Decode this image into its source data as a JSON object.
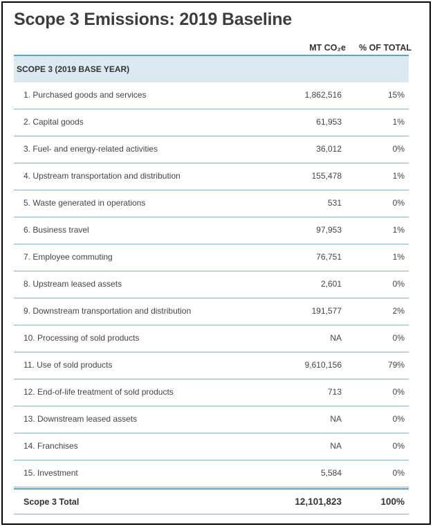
{
  "title": "Scope 3 Emissions: 2019 Baseline",
  "columns": {
    "mt": "MT CO₂e",
    "pct": "% OF TOTAL"
  },
  "section_label": "SCOPE 3 (2019 BASE YEAR)",
  "rows": [
    {
      "label": "1. Purchased goods and services",
      "mt": "1,862,516",
      "pct": "15%"
    },
    {
      "label": "2. Capital goods",
      "mt": "61,953",
      "pct": "1%"
    },
    {
      "label": "3. Fuel- and energy-related activities",
      "mt": "36,012",
      "pct": "0%"
    },
    {
      "label": "4. Upstream transportation and distribution",
      "mt": "155,478",
      "pct": "1%"
    },
    {
      "label": "5. Waste generated in operations",
      "mt": "531",
      "pct": "0%"
    },
    {
      "label": "6. Business travel",
      "mt": "97,953",
      "pct": "1%"
    },
    {
      "label": "7. Employee commuting",
      "mt": "76,751",
      "pct": "1%"
    },
    {
      "label": "8. Upstream leased assets",
      "mt": "2,601",
      "pct": "0%"
    },
    {
      "label": "9. Downstream transportation and distribution",
      "mt": "191,577",
      "pct": "2%"
    },
    {
      "label": "10. Processing of sold products",
      "mt": "NA",
      "pct": "0%"
    },
    {
      "label": "11. Use of sold products",
      "mt": "9,610,156",
      "pct": "79%"
    },
    {
      "label": "12. End-of-life treatment of sold products",
      "mt": "713",
      "pct": "0%"
    },
    {
      "label": "13. Downstream leased assets",
      "mt": "NA",
      "pct": "0%"
    },
    {
      "label": "14. Franchises",
      "mt": "NA",
      "pct": "0%"
    },
    {
      "label": "15. Investment",
      "mt": "5,584",
      "pct": "0%"
    }
  ],
  "total": {
    "label": "Scope 3 Total",
    "mt": "12,101,823",
    "pct": "100%"
  }
}
